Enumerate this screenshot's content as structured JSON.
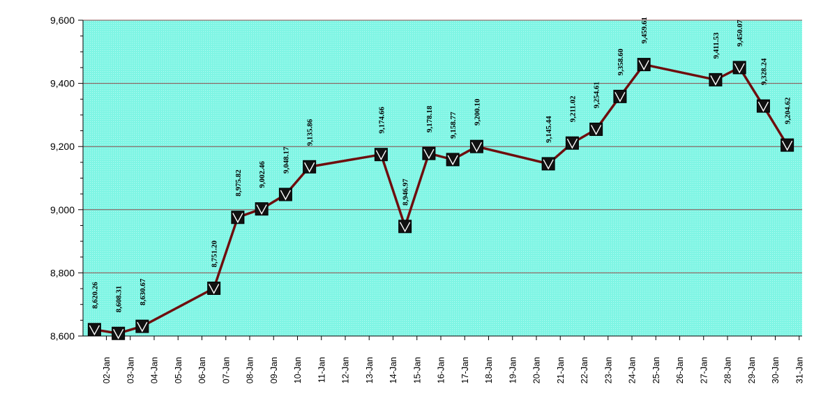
{
  "chart_data": {
    "type": "line",
    "title": "",
    "xlabel": "",
    "ylabel": "",
    "ylim": [
      8600,
      9600
    ],
    "y_ticks": [
      "8,600",
      "8,800",
      "9,000",
      "9,200",
      "9,400",
      "9,600"
    ],
    "x_ticks": [
      "02-Jan",
      "03-Jan",
      "04-Jan",
      "05-Jan",
      "06-Jan",
      "07-Jan",
      "08-Jan",
      "09-Jan",
      "10-Jan",
      "11-Jan",
      "12-Jan",
      "13-Jan",
      "14-Jan",
      "15-Jan",
      "16-Jan",
      "17-Jan",
      "18-Jan",
      "19-Jan",
      "20-Jan",
      "21-Jan",
      "22-Jan",
      "23-Jan",
      "24-Jan",
      "25-Jan",
      "26-Jan",
      "27-Jan",
      "28-Jan",
      "29-Jan",
      "30-Jan",
      "31-Jan"
    ],
    "grid": true,
    "legend": "none",
    "colors": {
      "plot_bg": "#7ff5e4",
      "line": "#6e0e0e",
      "marker": "#111111",
      "grid": "#8a4a4a"
    },
    "marker_icon": "check-square-marker",
    "points": [
      {
        "date": "01-Jan",
        "value": 8620.26,
        "label": "8,620.26"
      },
      {
        "date": "02-Jan",
        "value": 8608.31,
        "label": "8,608.31"
      },
      {
        "date": "03-Jan",
        "value": 8630.67,
        "label": "8,630.67"
      },
      {
        "date": "06-Jan",
        "value": 8751.2,
        "label": "8,751.20"
      },
      {
        "date": "07-Jan",
        "value": 8975.82,
        "label": "8,975.82"
      },
      {
        "date": "08-Jan",
        "value": 9002.46,
        "label": "9,002.46"
      },
      {
        "date": "09-Jan",
        "value": 9048.17,
        "label": "9,048.17"
      },
      {
        "date": "10-Jan",
        "value": 9135.86,
        "label": "9,135.86"
      },
      {
        "date": "13-Jan",
        "value": 9174.66,
        "label": "9,174.66"
      },
      {
        "date": "14-Jan",
        "value": 8946.97,
        "label": "8,946.97"
      },
      {
        "date": "15-Jan",
        "value": 9178.18,
        "label": "9,178.18"
      },
      {
        "date": "16-Jan",
        "value": 9158.77,
        "label": "9,158.77"
      },
      {
        "date": "17-Jan",
        "value": 9200.1,
        "label": "9,200.10"
      },
      {
        "date": "20-Jan",
        "value": 9145.44,
        "label": "9,145.44"
      },
      {
        "date": "21-Jan",
        "value": 9211.02,
        "label": "9,211.02"
      },
      {
        "date": "22-Jan",
        "value": 9254.61,
        "label": "9,254.61"
      },
      {
        "date": "23-Jan",
        "value": 9358.6,
        "label": "9,358.60"
      },
      {
        "date": "24-Jan",
        "value": 9459.61,
        "label": "9,459.61"
      },
      {
        "date": "27-Jan",
        "value": 9411.53,
        "label": "9,411.53"
      },
      {
        "date": "28-Jan",
        "value": 9450.07,
        "label": "9,450.07"
      },
      {
        "date": "29-Jan",
        "value": 9328.24,
        "label": "9,328.24"
      },
      {
        "date": "30-Jan",
        "value": 9204.62,
        "label": "9,204.62"
      }
    ]
  }
}
